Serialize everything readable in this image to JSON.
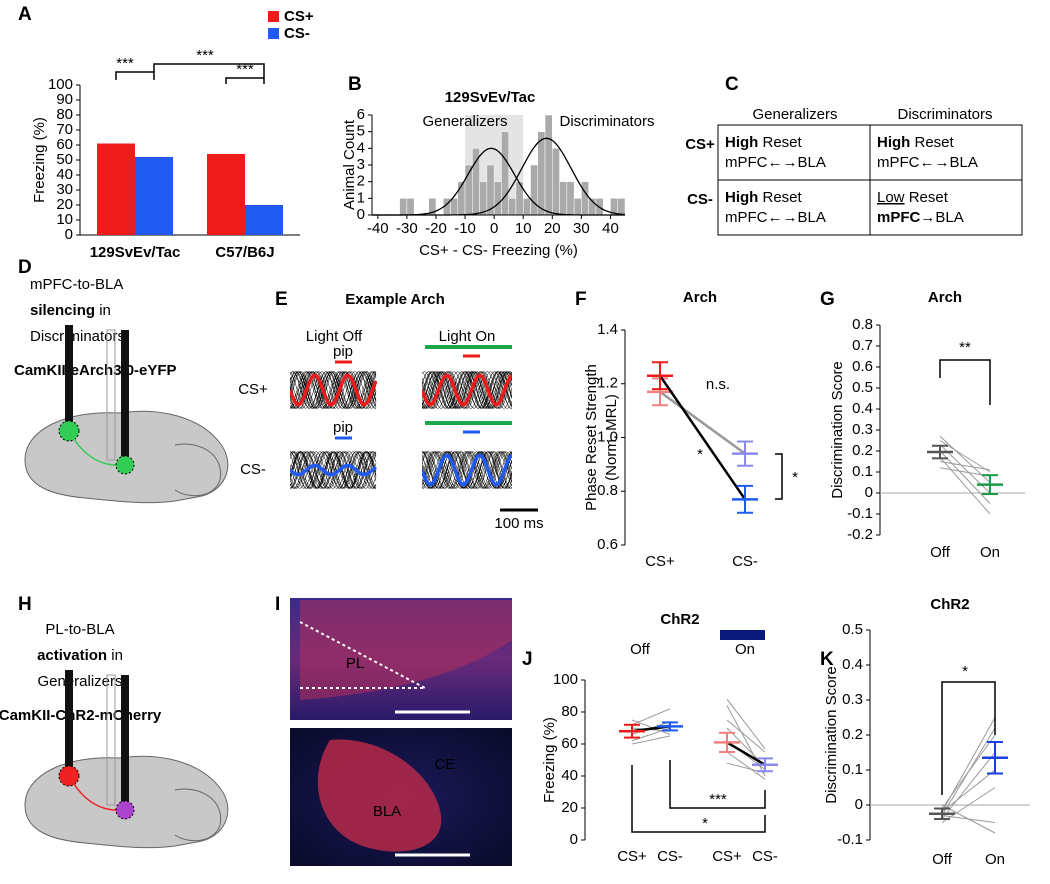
{
  "chart_data": [
    {
      "type": "bar",
      "panel": "A",
      "ylabel": "Freezing (%)",
      "categories": [
        "129SvEv/Tac",
        "C57/B6J"
      ],
      "series": [
        {
          "name": "CS+",
          "color": "#ee1b1b",
          "values": [
            61,
            54
          ]
        },
        {
          "name": "CS-",
          "color": "#1f5af2",
          "values": [
            52,
            20
          ]
        }
      ],
      "ylim": [
        0,
        100
      ],
      "yticks": [
        0,
        10,
        20,
        30,
        40,
        50,
        60,
        70,
        80,
        90,
        100
      ],
      "annotations": [
        "***",
        "***",
        "***"
      ]
    },
    {
      "type": "histogram",
      "panel": "B",
      "title": "129SvEv/Tac",
      "xlabel": "CS+ - CS- Freezing (%)",
      "ylabel": "Animal Count",
      "bins": [
        -32.5,
        -30,
        -27.5,
        -25,
        -22.5,
        -20,
        -17.5,
        -15,
        -12.5,
        -10,
        -7.5,
        -5,
        -2.5,
        0,
        2.5,
        5,
        7.5,
        10,
        12.5,
        15,
        17.5,
        20,
        22.5,
        25,
        27.5,
        30,
        32.5,
        35,
        37.5,
        40,
        42.5,
        45
      ],
      "counts": [
        1,
        1,
        0,
        0,
        1,
        0,
        1,
        1,
        2,
        3,
        4,
        2,
        3,
        2,
        5,
        1,
        2,
        1,
        3,
        5,
        6,
        4,
        2,
        2,
        1,
        2,
        1,
        1,
        0,
        1,
        1
      ],
      "color": "#aaaaaa",
      "xlim": [
        -42,
        45
      ],
      "xticks": [
        -40,
        -30,
        -20,
        -10,
        0,
        10,
        20,
        30,
        40
      ],
      "ylim": [
        0,
        6
      ],
      "yticks": [
        0,
        1,
        2,
        3,
        4,
        5,
        6
      ],
      "shade": [
        -10,
        10
      ],
      "group_labels": [
        "Generalizers",
        "Discriminators"
      ],
      "fits": [
        {
          "mean": -1,
          "sd": 8,
          "peak": 4
        },
        {
          "mean": 18,
          "sd": 8.5,
          "peak": 4.6
        }
      ]
    },
    {
      "type": "line",
      "panel": "F",
      "title": "Arch",
      "ylabel": [
        "Phase Reset Strength",
        "(Norm. MRL)"
      ],
      "categories": [
        "CS+",
        "CS-"
      ],
      "category_colors": [
        "#ee1b1b",
        "#1f5af2"
      ],
      "ylim": [
        0.6,
        1.4
      ],
      "yticks": [
        0.6,
        0.8,
        {
          "value": 1,
          "label": "1.0"
        },
        1.2,
        1.4
      ],
      "series": [
        {
          "color": "#999999",
          "marker_colors": [
            "#f08080",
            "#8a8aee"
          ],
          "values": [
            1.17,
            0.94
          ],
          "errors": [
            0.05,
            0.045
          ]
        },
        {
          "color": "#000000",
          "marker_colors": [
            "#ee1b1b",
            "#1f5af2"
          ],
          "values": [
            1.23,
            0.77
          ],
          "errors": [
            0.05,
            0.05
          ]
        }
      ],
      "annotations": [
        "n.s.",
        "*",
        "*"
      ]
    },
    {
      "type": "line",
      "panel": "G",
      "title": "Arch",
      "ylabel": "Discrimination Score",
      "categories": [
        "Off",
        "On"
      ],
      "ylim": [
        -0.2,
        0.8
      ],
      "yticks": [
        -0.2,
        -0.1,
        0,
        0.1,
        0.2,
        0.3,
        0.4,
        0.5,
        0.6,
        0.7,
        0.8
      ],
      "zero_line": true,
      "series": [
        {
          "marker_colors": [
            "#555555",
            "#1a9a4a"
          ],
          "values": [
            0.195,
            0.04
          ],
          "errors": [
            0.03,
            0.045
          ]
        }
      ],
      "pairs": [
        [
          0.27,
          0.05
        ],
        [
          0.25,
          0.1
        ],
        [
          0.23,
          0.0
        ],
        [
          0.2,
          -0.05
        ],
        [
          0.17,
          -0.1
        ],
        [
          0.15,
          0.11
        ],
        [
          0.12,
          0.08
        ]
      ],
      "annotations": [
        "**"
      ]
    },
    {
      "type": "line",
      "panel": "J",
      "title": "ChR2",
      "ylabel": "Freezing (%)",
      "categories": [
        "CS+",
        "CS-",
        "CS+",
        "CS-"
      ],
      "category_colors": [
        "#ee1b1b",
        "#1f5af2",
        "#f08080",
        "#8a8aee"
      ],
      "group_labels": [
        "Off",
        "On"
      ],
      "ylim": [
        0,
        100
      ],
      "yticks": [
        0,
        20,
        40,
        60,
        80,
        100
      ],
      "series": [
        {
          "color": "#000000",
          "marker_colors": [
            "#ee1b1b",
            "#1f5af2",
            "#f08080",
            "#8a8aee"
          ],
          "values": [
            68,
            71,
            61,
            47
          ],
          "errors": [
            4,
            2.5,
            6,
            4
          ]
        }
      ],
      "pairs": [
        [
          62,
          70,
          88,
          57
        ],
        [
          66,
          74,
          84,
          40
        ],
        [
          72,
          82,
          75,
          55
        ],
        [
          60,
          65,
          70,
          46
        ],
        [
          68,
          72,
          62,
          44
        ],
        [
          70,
          68,
          55,
          38
        ],
        [
          75,
          66,
          48,
          42
        ]
      ],
      "annotations": [
        "***",
        "*"
      ]
    },
    {
      "type": "line",
      "panel": "K",
      "title": "ChR2",
      "ylabel": "Discrimination Score",
      "categories": [
        "Off",
        "On"
      ],
      "ylim": [
        -0.1,
        0.5
      ],
      "yticks": [
        -0.1,
        0,
        0.1,
        0.2,
        0.3,
        0.4,
        0.5
      ],
      "zero_line": true,
      "series": [
        {
          "marker_colors": [
            "#555555",
            "#1a3ee8"
          ],
          "values": [
            -0.025,
            0.135
          ],
          "errors": [
            0.015,
            0.045
          ]
        }
      ],
      "pairs": [
        [
          -0.02,
          0.25
        ],
        [
          -0.03,
          0.22
        ],
        [
          -0.01,
          0.2
        ],
        [
          -0.04,
          0.15
        ],
        [
          -0.02,
          0.1
        ],
        [
          -0.05,
          0.05
        ],
        [
          0.0,
          -0.08
        ],
        [
          -0.03,
          -0.05
        ]
      ],
      "annotations": [
        "*"
      ]
    }
  ],
  "table": {
    "label": "C",
    "headers": [
      "Generalizers",
      "Discriminators"
    ],
    "row_labels": [
      "CS+",
      "CS-"
    ],
    "cells": [
      [
        {
          "line1": [
            {
              "text": "High",
              "style": "bold"
            },
            {
              "text": " Reset"
            }
          ],
          "line2": [
            {
              "text": "mPFC←→BLA"
            }
          ]
        },
        {
          "line1": [
            {
              "text": "High",
              "style": "bold"
            },
            {
              "text": " Reset"
            }
          ],
          "line2": [
            {
              "text": "mPFC←→BLA"
            }
          ]
        }
      ],
      [
        {
          "line1": [
            {
              "text": "High",
              "style": "bold"
            },
            {
              "text": " Reset"
            }
          ],
          "line2": [
            {
              "text": "mPFC←→BLA"
            }
          ]
        },
        {
          "line1": [
            {
              "text": "Low",
              "style": "underline"
            },
            {
              "text": " Reset"
            }
          ],
          "line2": [
            {
              "text": "mPFC",
              "style": "bold"
            },
            {
              "text": "→BLA"
            }
          ]
        }
      ]
    ]
  },
  "panel_d": {
    "label": "D",
    "lines": [
      [
        {
          "text": "mPFC-to-BLA"
        }
      ],
      [
        {
          "text": "silencing",
          "style": "bold"
        },
        {
          "text": " in"
        }
      ],
      [
        {
          "text": "Discriminators"
        }
      ]
    ],
    "construct": "CamKII-eArch3.0-eYFP"
  },
  "panel_e": {
    "label": "E",
    "title": "Example Arch",
    "columns": [
      "Light Off",
      "Light On"
    ],
    "stimulus": [
      "pip",
      "pip"
    ],
    "rows": [
      "CS+",
      "CS-"
    ],
    "scale": "100 ms"
  },
  "panel_h": {
    "label": "H",
    "lines": [
      [
        {
          "text": "PL-to-BLA"
        }
      ],
      [
        {
          "text": "activation",
          "style": "bold"
        },
        {
          "text": " in"
        }
      ],
      [
        {
          "text": "Generalizers"
        }
      ]
    ],
    "construct": "CamKII-ChR2-mCherry"
  },
  "panel_i": {
    "label": "I",
    "regions": [
      "PL",
      "CE",
      "BLA"
    ]
  }
}
